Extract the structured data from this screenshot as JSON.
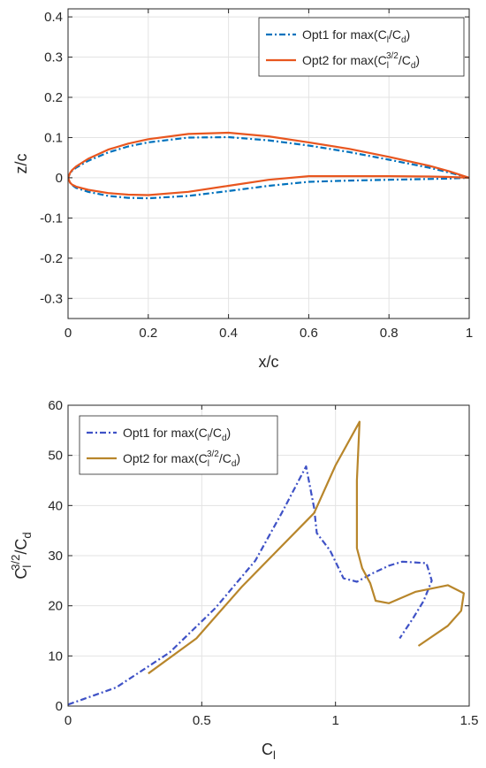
{
  "chart_data": [
    {
      "type": "line",
      "xlabel": "x/c",
      "ylabel": "z/c",
      "xlim": [
        0,
        1
      ],
      "ylim": [
        -0.35,
        0.42
      ],
      "xticks": [
        0,
        0.2,
        0.4,
        0.6,
        0.8,
        1
      ],
      "xtick_labels": [
        "0",
        "0.2",
        "0.4",
        "0.6",
        "0.8",
        "1"
      ],
      "yticks": [
        -0.3,
        -0.2,
        -0.1,
        0,
        0.1,
        0.2,
        0.3,
        0.4
      ],
      "ytick_labels": [
        "-0.3",
        "-0.2",
        "-0.1",
        "0",
        "0.1",
        "0.2",
        "0.3",
        "0.4"
      ],
      "grid": true,
      "legend_position": "top-right",
      "series": [
        {
          "name": "Opt1 for max(C_l/C_d)",
          "legend": {
            "prefix": "Opt1 for max(C",
            "sub1": "l",
            "mid": "/C",
            "sub2": "d",
            "suffix": ")"
          },
          "color": "#0072BD",
          "style": "dash-dot",
          "x": [
            1.0,
            0.95,
            0.9,
            0.8,
            0.7,
            0.6,
            0.5,
            0.4,
            0.3,
            0.2,
            0.15,
            0.1,
            0.05,
            0.02,
            0.01,
            0.005,
            0.0,
            0.005,
            0.01,
            0.02,
            0.05,
            0.1,
            0.15,
            0.2,
            0.3,
            0.4,
            0.5,
            0.6,
            0.7,
            0.8,
            0.9,
            0.95,
            1.0
          ],
          "y": [
            0.0,
            0.013,
            0.025,
            0.045,
            0.064,
            0.08,
            0.093,
            0.101,
            0.1,
            0.088,
            0.078,
            0.063,
            0.042,
            0.025,
            0.017,
            0.011,
            0.0,
            -0.012,
            -0.018,
            -0.025,
            -0.035,
            -0.045,
            -0.05,
            -0.051,
            -0.045,
            -0.033,
            -0.02,
            -0.01,
            -0.007,
            -0.005,
            -0.003,
            -0.002,
            0.0
          ]
        },
        {
          "name": "Opt2 for max(C_l^3/2/C_d)",
          "legend": {
            "prefix": "Opt2 for max(C",
            "sub1": "l",
            "sup1": "3/2",
            "mid": "/C",
            "sub2": "d",
            "suffix": ")"
          },
          "color": "#E8561F",
          "style": "solid",
          "x": [
            1.0,
            0.95,
            0.9,
            0.8,
            0.7,
            0.6,
            0.5,
            0.4,
            0.3,
            0.2,
            0.15,
            0.1,
            0.05,
            0.02,
            0.01,
            0.005,
            0.0,
            0.005,
            0.01,
            0.02,
            0.05,
            0.1,
            0.15,
            0.2,
            0.3,
            0.4,
            0.5,
            0.6,
            0.7,
            0.8,
            0.9,
            0.95,
            1.0
          ],
          "y": [
            0.0,
            0.016,
            0.03,
            0.052,
            0.072,
            0.088,
            0.103,
            0.112,
            0.109,
            0.096,
            0.085,
            0.07,
            0.047,
            0.028,
            0.019,
            0.012,
            0.0,
            -0.012,
            -0.017,
            -0.022,
            -0.03,
            -0.038,
            -0.042,
            -0.043,
            -0.035,
            -0.02,
            -0.005,
            0.004,
            0.004,
            0.004,
            0.003,
            0.002,
            0.0
          ]
        }
      ]
    },
    {
      "type": "line",
      "xlabel": "C_l",
      "xlabel_parts": {
        "main": "C",
        "sub": "l"
      },
      "ylabel": "C_l^3/2/C_d",
      "ylabel_parts": {
        "main": "C",
        "sub1": "l",
        "sup1": "3/2",
        "mid": "/C",
        "sub2": "d"
      },
      "xlim": [
        0,
        1.5
      ],
      "ylim": [
        0,
        60
      ],
      "xticks": [
        0,
        0.5,
        1,
        1.5
      ],
      "xtick_labels": [
        "0",
        "0.5",
        "1",
        "1.5"
      ],
      "yticks": [
        0,
        10,
        20,
        30,
        40,
        50,
        60
      ],
      "ytick_labels": [
        "0",
        "10",
        "20",
        "30",
        "40",
        "50",
        "60"
      ],
      "grid": true,
      "legend_position": "top-left",
      "series": [
        {
          "name": "Opt1 for max(C_l/C_d)",
          "legend": {
            "prefix": "Opt1 for max(C",
            "sub1": "l",
            "mid": "/C",
            "sub2": "d",
            "suffix": ")"
          },
          "color": "#3F52C6",
          "style": "dash-dot",
          "x": [
            0.0,
            0.18,
            0.38,
            0.55,
            0.7,
            0.8,
            0.89,
            0.92,
            0.93,
            0.98,
            1.03,
            1.08,
            1.14,
            1.2,
            1.25,
            1.34,
            1.36,
            1.33,
            1.29,
            1.24
          ],
          "y": [
            0.3,
            3.7,
            10.7,
            19.5,
            29.0,
            38.6,
            47.8,
            39.5,
            34.5,
            31.0,
            25.5,
            24.8,
            26.5,
            28.0,
            28.8,
            28.5,
            25.0,
            21.0,
            17.5,
            13.5
          ]
        },
        {
          "name": "Opt2 for max(C_l^3/2/C_d)",
          "legend": {
            "prefix": "Opt2 for max(C",
            "sub1": "l",
            "sup1": "3/2",
            "mid": "/C",
            "sub2": "d",
            "suffix": ")"
          },
          "color": "#B8862B",
          "style": "solid",
          "x": [
            0.3,
            0.48,
            0.65,
            0.92,
            1.0,
            1.09,
            1.08,
            1.08,
            1.1,
            1.13,
            1.15,
            1.2,
            1.3,
            1.42,
            1.48,
            1.47,
            1.42,
            1.31
          ],
          "y": [
            6.5,
            13.5,
            23.8,
            38.5,
            48.0,
            56.7,
            45.0,
            31.5,
            27.5,
            24.5,
            21.0,
            20.5,
            22.8,
            24.1,
            22.5,
            19.0,
            16.0,
            12.0
          ]
        }
      ]
    }
  ]
}
